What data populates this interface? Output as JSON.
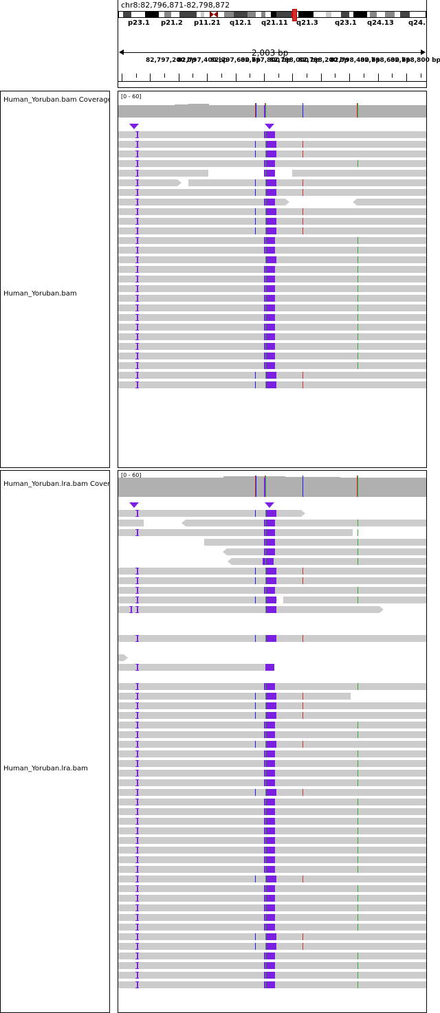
{
  "locus": "chr8:82,796,871-82,798,872",
  "ideogram": {
    "bands": [
      "p23.1",
      "p21.2",
      "p11.21",
      "q12.1",
      "q21.11",
      "q21.3",
      "q23.1",
      "q24.13",
      "q24."
    ],
    "colors": {
      "outline": "#000000",
      "centromere": "#8b0000",
      "highlight": "#ff0000"
    }
  },
  "ruler": {
    "span_text": "2,003 bp",
    "ticks": [
      "82,797,200 bp",
      "82,797,400 bp",
      "82,797,600 bp",
      "82,797,800 bp",
      "82,798,000 bp",
      "82,798,200 bp",
      "82,798,400 bp",
      "82,798,600 bp",
      "82,798,800 bp"
    ]
  },
  "tracks": {
    "bam_coverage": {
      "label": "Human_Yoruban.bam Coverage",
      "scale": "[0 - 60]"
    },
    "bam": {
      "label": "Human_Yoruban.bam"
    },
    "lra_coverage": {
      "label": "Human_Yoruban.lra.bam Coverage",
      "scale": "[0 - 60]"
    },
    "lra": {
      "label": "Human_Yoruban.lra.bam"
    }
  },
  "colors": {
    "read": "#cccccc",
    "coverage": "#b0b0b0",
    "insertion": "#7b1fe0",
    "mismatch_red": "#d32f2f",
    "mismatch_blue": "#1a1aff",
    "mismatch_green": "#33aa33"
  }
}
